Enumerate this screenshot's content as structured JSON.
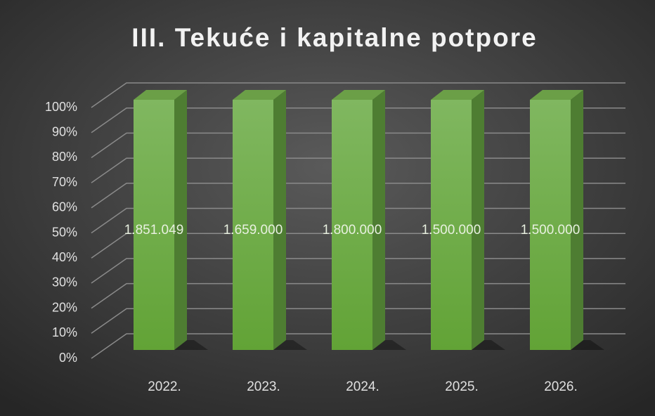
{
  "chart_data": {
    "type": "bar",
    "stacking": "percent",
    "title": "III. Tekuće i kapitalne potpore",
    "categories": [
      "2022.",
      "2023.",
      "2024.",
      "2025.",
      "2026."
    ],
    "values": [
      1851049,
      1659000,
      1800000,
      1500000,
      1500000
    ],
    "value_labels": [
      "1.851.049",
      "1.659.000",
      "1.800.000",
      "1.500.000",
      "1.500.000"
    ],
    "color": "#70ad47",
    "ylim": [
      0,
      100
    ],
    "yticks": [
      {
        "value": 0,
        "label": "0%"
      },
      {
        "value": 10,
        "label": "10%"
      },
      {
        "value": 20,
        "label": "20%"
      },
      {
        "value": 30,
        "label": "30%"
      },
      {
        "value": 40,
        "label": "40%"
      },
      {
        "value": 50,
        "label": "50%"
      },
      {
        "value": 60,
        "label": "60%"
      },
      {
        "value": 70,
        "label": "70%"
      },
      {
        "value": 80,
        "label": "80%"
      },
      {
        "value": 90,
        "label": "90%"
      },
      {
        "value": 100,
        "label": "100%"
      }
    ],
    "grid": true
  }
}
